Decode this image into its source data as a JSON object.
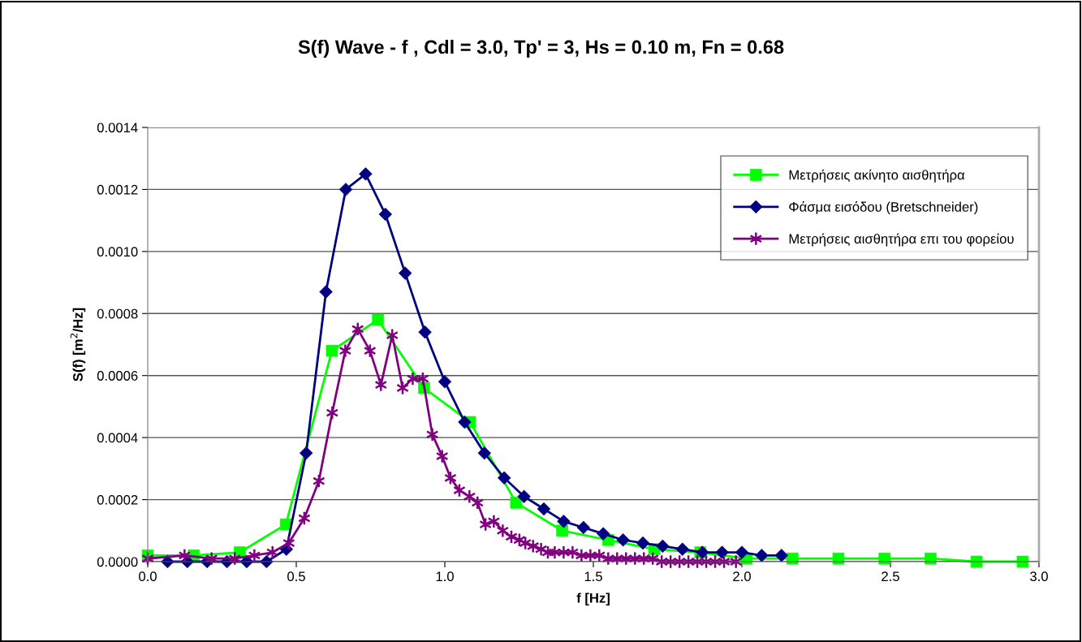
{
  "chart_data": {
    "type": "line",
    "title": "S(f) Wave - f , Cdl = 3.0, Tp' = 3, Hs = 0.10 m, Fn = 0.68",
    "xlabel": "f [Hz]",
    "ylabel": "S(f) [m$^{2}$/Hz]",
    "xlim": [
      0,
      3
    ],
    "xticks": [
      {
        "value": 0,
        "label": "0.0"
      },
      {
        "value": 0.5,
        "label": "0.5"
      },
      {
        "value": 1,
        "label": "1.0"
      },
      {
        "value": 1.5,
        "label": "1.5"
      },
      {
        "value": 2,
        "label": "2.0"
      },
      {
        "value": 2.5,
        "label": "2.5"
      },
      {
        "value": 3,
        "label": "3.0"
      }
    ],
    "ylim": [
      0,
      0.0014
    ],
    "yticks": [
      {
        "value": 0,
        "label": "0.0000"
      },
      {
        "value": 0.0002,
        "label": "0.0002"
      },
      {
        "value": 0.0004,
        "label": "0.0004"
      },
      {
        "value": 0.0006,
        "label": "0.0006"
      },
      {
        "value": 0.0008,
        "label": "0.0008"
      },
      {
        "value": 0.001,
        "label": "0.0010"
      },
      {
        "value": 0.0012,
        "label": "0.0012"
      },
      {
        "value": 0.0014,
        "label": "0.0014"
      }
    ],
    "grid": "y",
    "legend": "top right",
    "series": [
      {
        "name": "Μετρήσεις ακίνητο αισθητήρα",
        "color": "#00ff00",
        "marker": "square",
        "x": [
          0,
          0.155,
          0.31,
          0.465,
          0.62,
          0.775,
          0.93,
          1.085,
          1.24,
          1.395,
          1.55,
          1.705,
          1.86,
          2.015,
          2.17,
          2.325,
          2.48,
          2.635,
          2.79,
          2.945
        ],
        "values": [
          2e-05,
          2e-05,
          3e-05,
          0.00012,
          0.00068,
          0.00078,
          0.00056,
          0.00045,
          0.00019,
          0.0001,
          7e-05,
          4e-05,
          3e-05,
          1e-05,
          1e-05,
          1e-05,
          1e-05,
          1e-05,
          0,
          0
        ]
      },
      {
        "name": "Φάσμα εισόδου (Bretschneider)",
        "color": "#000080",
        "marker": "diamond",
        "x": [
          0.0667,
          0.1333,
          0.2,
          0.2667,
          0.3333,
          0.4,
          0.4667,
          0.5333,
          0.6,
          0.6667,
          0.7333,
          0.8,
          0.8667,
          0.9333,
          1.0,
          1.0667,
          1.1333,
          1.2,
          1.2667,
          1.3333,
          1.4,
          1.4667,
          1.5333,
          1.6,
          1.6667,
          1.7333,
          1.8,
          1.8667,
          1.9333,
          2.0,
          2.0667,
          2.1333
        ],
        "values": [
          0,
          0,
          0,
          0,
          0,
          0,
          4e-05,
          0.00035,
          0.00087,
          0.0012,
          0.00125,
          0.00112,
          0.00093,
          0.00074,
          0.00058,
          0.00045,
          0.00035,
          0.00027,
          0.00021,
          0.00017,
          0.00013,
          0.00011,
          9e-05,
          7e-05,
          6e-05,
          5e-05,
          4e-05,
          3e-05,
          3e-05,
          3e-05,
          2e-05,
          2e-05
        ]
      },
      {
        "name": "Μετρήσεις αισθητήρα επι του φορείου",
        "color": "#800080",
        "marker": "cross",
        "x": [
          0,
          0.124,
          0.215,
          0.293,
          0.359,
          0.42,
          0.475,
          0.527,
          0.576,
          0.621,
          0.665,
          0.707,
          0.748,
          0.785,
          0.823,
          0.858,
          0.892,
          0.926,
          0.958,
          0.991,
          1.019,
          1.049,
          1.083,
          1.11,
          1.137,
          1.165,
          1.195,
          1.224,
          1.251,
          1.271,
          1.297,
          1.324,
          1.347,
          1.37,
          1.4,
          1.43,
          1.46,
          1.49,
          1.52,
          1.55,
          1.58,
          1.61,
          1.64,
          1.67,
          1.7,
          1.73,
          1.76,
          1.79,
          1.82,
          1.85,
          1.88,
          1.91,
          1.94,
          1.98
        ],
        "values": [
          1e-05,
          2e-05,
          1e-05,
          1e-05,
          2e-05,
          3e-05,
          6e-05,
          0.00014,
          0.00026,
          0.00048,
          0.00068,
          0.00075,
          0.00068,
          0.00057,
          0.00073,
          0.00056,
          0.00059,
          0.00059,
          0.00041,
          0.00034,
          0.00027,
          0.00023,
          0.00021,
          0.00019,
          0.00012,
          0.00013,
          0.0001,
          8e-05,
          7e-05,
          6e-05,
          5e-05,
          4e-05,
          3e-05,
          3e-05,
          3e-05,
          3e-05,
          2e-05,
          2e-05,
          2e-05,
          1e-05,
          1e-05,
          1e-05,
          1e-05,
          1e-05,
          1e-05,
          0,
          0,
          0,
          0,
          0,
          0,
          0,
          0,
          0
        ]
      }
    ]
  }
}
